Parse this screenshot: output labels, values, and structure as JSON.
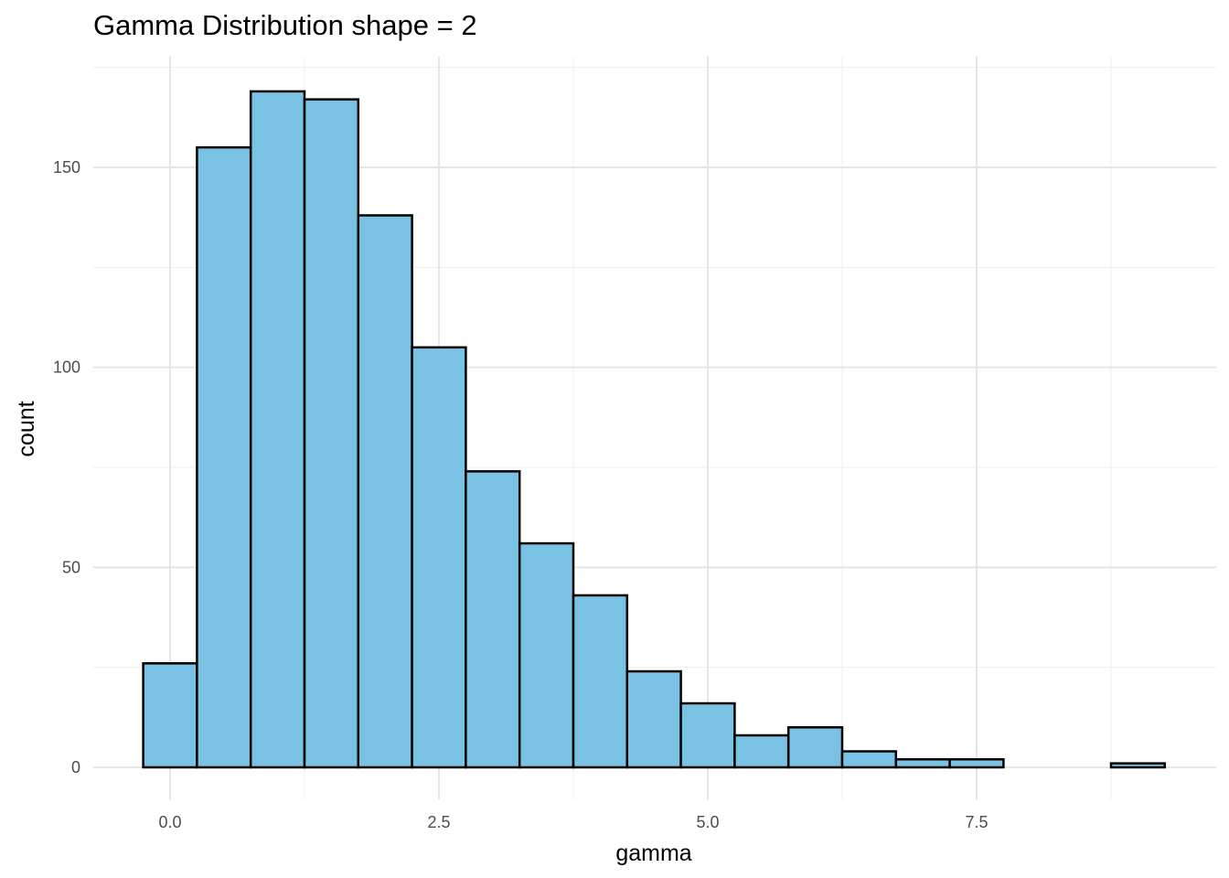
{
  "chart_data": {
    "type": "bar",
    "title": "Gamma Distribution shape = 2",
    "xlabel": "gamma",
    "ylabel": "count",
    "xlim": [
      -0.25,
      9.25
    ],
    "ylim": [
      0,
      170
    ],
    "x_ticks": [
      0.0,
      2.5,
      5.0,
      7.5
    ],
    "x_tick_labels": [
      "0.0",
      "2.5",
      "5.0",
      "7.5"
    ],
    "y_ticks": [
      0,
      50,
      100,
      150
    ],
    "y_tick_labels": [
      "0",
      "50",
      "100",
      "150"
    ],
    "grid": true,
    "bar_fill": "#79c2e4",
    "bar_outline": "#000000",
    "bins": [
      {
        "x0": -0.25,
        "x1": 0.25,
        "count": 26
      },
      {
        "x0": 0.25,
        "x1": 0.75,
        "count": 155
      },
      {
        "x0": 0.75,
        "x1": 1.25,
        "count": 169
      },
      {
        "x0": 1.25,
        "x1": 1.75,
        "count": 167
      },
      {
        "x0": 1.75,
        "x1": 2.25,
        "count": 138
      },
      {
        "x0": 2.25,
        "x1": 2.75,
        "count": 105
      },
      {
        "x0": 2.75,
        "x1": 3.25,
        "count": 74
      },
      {
        "x0": 3.25,
        "x1": 3.75,
        "count": 56
      },
      {
        "x0": 3.75,
        "x1": 4.25,
        "count": 43
      },
      {
        "x0": 4.25,
        "x1": 4.75,
        "count": 24
      },
      {
        "x0": 4.75,
        "x1": 5.25,
        "count": 16
      },
      {
        "x0": 5.25,
        "x1": 5.75,
        "count": 8
      },
      {
        "x0": 5.75,
        "x1": 6.25,
        "count": 10
      },
      {
        "x0": 6.25,
        "x1": 6.75,
        "count": 4
      },
      {
        "x0": 6.75,
        "x1": 7.25,
        "count": 2
      },
      {
        "x0": 7.25,
        "x1": 7.75,
        "count": 2
      },
      {
        "x0": 7.75,
        "x1": 8.25,
        "count": 0
      },
      {
        "x0": 8.25,
        "x1": 8.75,
        "count": 0
      },
      {
        "x0": 8.75,
        "x1": 9.25,
        "count": 1
      }
    ]
  }
}
